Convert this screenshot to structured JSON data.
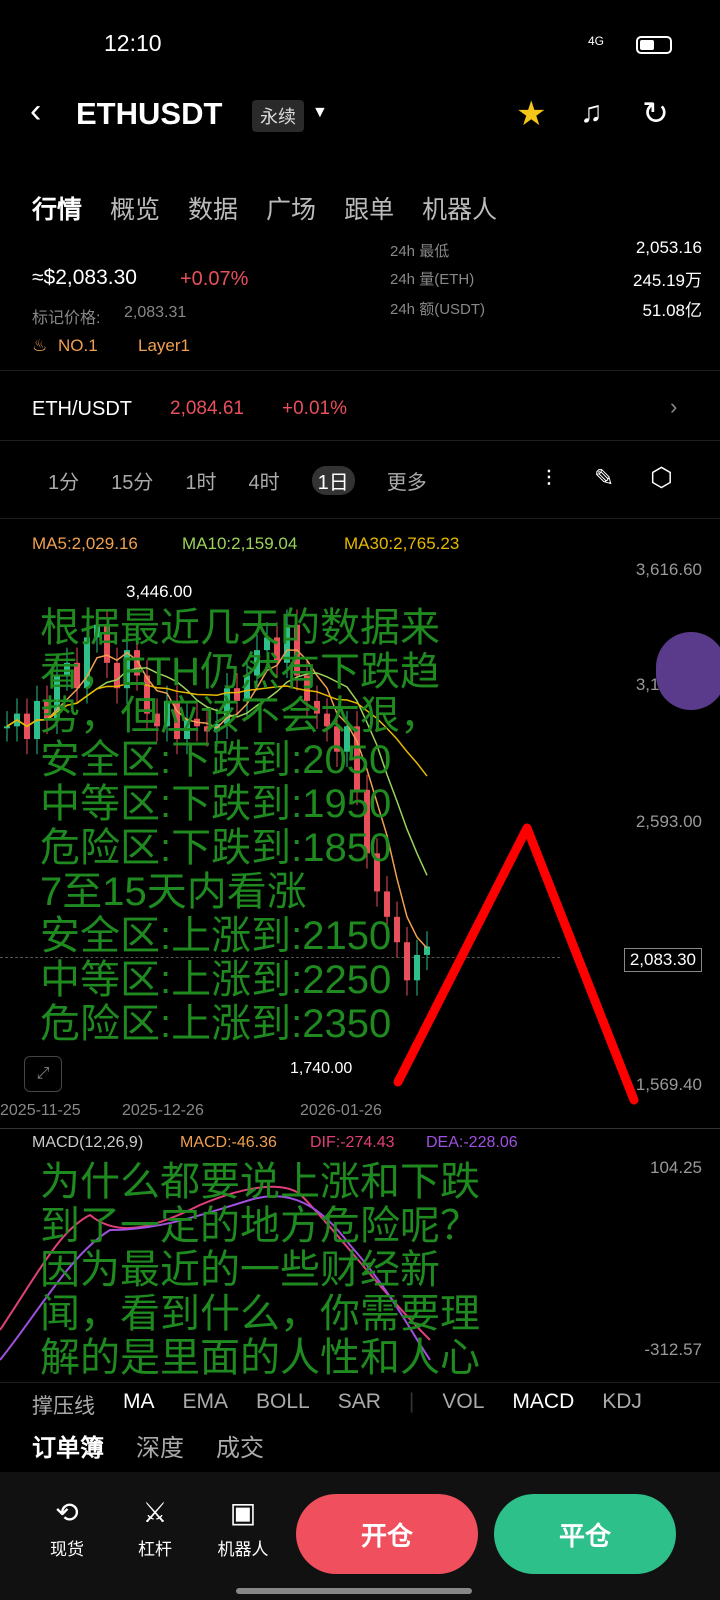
{
  "status": {
    "time": "12:10",
    "network": "4G"
  },
  "header": {
    "title": "ETHUSDT",
    "badge": "永续"
  },
  "tabs": [
    "行情",
    "概览",
    "数据",
    "广场",
    "跟单",
    "机器人"
  ],
  "price": {
    "usd": "≈$2,083.30",
    "change": "+0.07%",
    "mark_label": "标记价格:",
    "mark_value": "2,083.31",
    "rank": "NO.1",
    "tag": "Layer1"
  },
  "stats": [
    {
      "label": "24h 最低",
      "value": "2,053.16"
    },
    {
      "label": "24h 量(ETH)",
      "value": "245.19万"
    },
    {
      "label": "24h 额(USDT)",
      "value": "51.08亿"
    }
  ],
  "spot": {
    "pair": "ETH/USDT",
    "price": "2,084.61",
    "change": "+0.01%"
  },
  "timeframes": [
    "1分",
    "15分",
    "1时",
    "4时",
    "1日",
    "更多"
  ],
  "ma": {
    "ma5": "MA5:2,029.16",
    "ma10": "MA10:2,159.04",
    "ma30": "MA30:2,765.23"
  },
  "axis": {
    "y": [
      "3,616.60",
      "3,104.80",
      "2,593.00",
      "2,083.30",
      "1,569.40"
    ],
    "x": [
      "2025-11-25",
      "2025-12-26",
      "2026-01-26"
    ],
    "high": "3,446.00",
    "low": "1,740.00"
  },
  "chart": {
    "closes": [
      2950,
      3000,
      2900,
      3050,
      2980,
      3150,
      3200,
      3100,
      3300,
      3350,
      3200,
      3100,
      3250,
      3150,
      3000,
      2950,
      3050,
      2900,
      2980,
      2950,
      2930,
      2960,
      3100,
      3050,
      3150,
      3250,
      3300,
      3200,
      3350,
      3150,
      3050,
      3000,
      2950,
      2850,
      2950,
      2700,
      2450,
      2300,
      2200,
      2100,
      1950,
      2050,
      2083.3
    ]
  },
  "macd": {
    "label": "MACD(12,26,9)",
    "macd": "MACD:-46.36",
    "dif": "DIF:-274.43",
    "dea": "DEA:-228.06",
    "max": "104.25",
    "min": "-312.57"
  },
  "indicators": [
    "撑压线",
    "MA",
    "EMA",
    "BOLL",
    "SAR",
    "VOL",
    "MACD",
    "KDJ"
  ],
  "book_tabs": [
    "订单簿",
    "深度",
    "成交"
  ],
  "nav": [
    {
      "label": "现货",
      "icon": "swap-icon"
    },
    {
      "label": "杠杆",
      "icon": "leverage-icon"
    },
    {
      "label": "机器人",
      "icon": "robot-icon"
    }
  ],
  "buttons": {
    "open": "开仓",
    "close": "平仓"
  },
  "overlay": {
    "lines1": [
      "根据最近几天的数据来",
      "看，ETH仍然有下跌趋",
      "势，但应该不会太狠，",
      "安全区:下跌到:2050",
      "中等区:下跌到:1950",
      "危险区:下跌到:1850"
    ],
    "lines2": [
      "7至15天内看涨",
      "安全区:上涨到:2150",
      "中等区:上涨到:2250",
      "危险区:上涨到:2350"
    ],
    "lines3": [
      "为什么都要说上涨和下跌",
      "到了一定的地方危险呢？",
      "因为最近的一些财经新",
      "闻，看到什么，你需要理",
      "解的是里面的人性和人心"
    ]
  },
  "colors": {
    "up": "#2ec08b",
    "down": "#e8505b",
    "overlay": "#1f8a1f"
  }
}
